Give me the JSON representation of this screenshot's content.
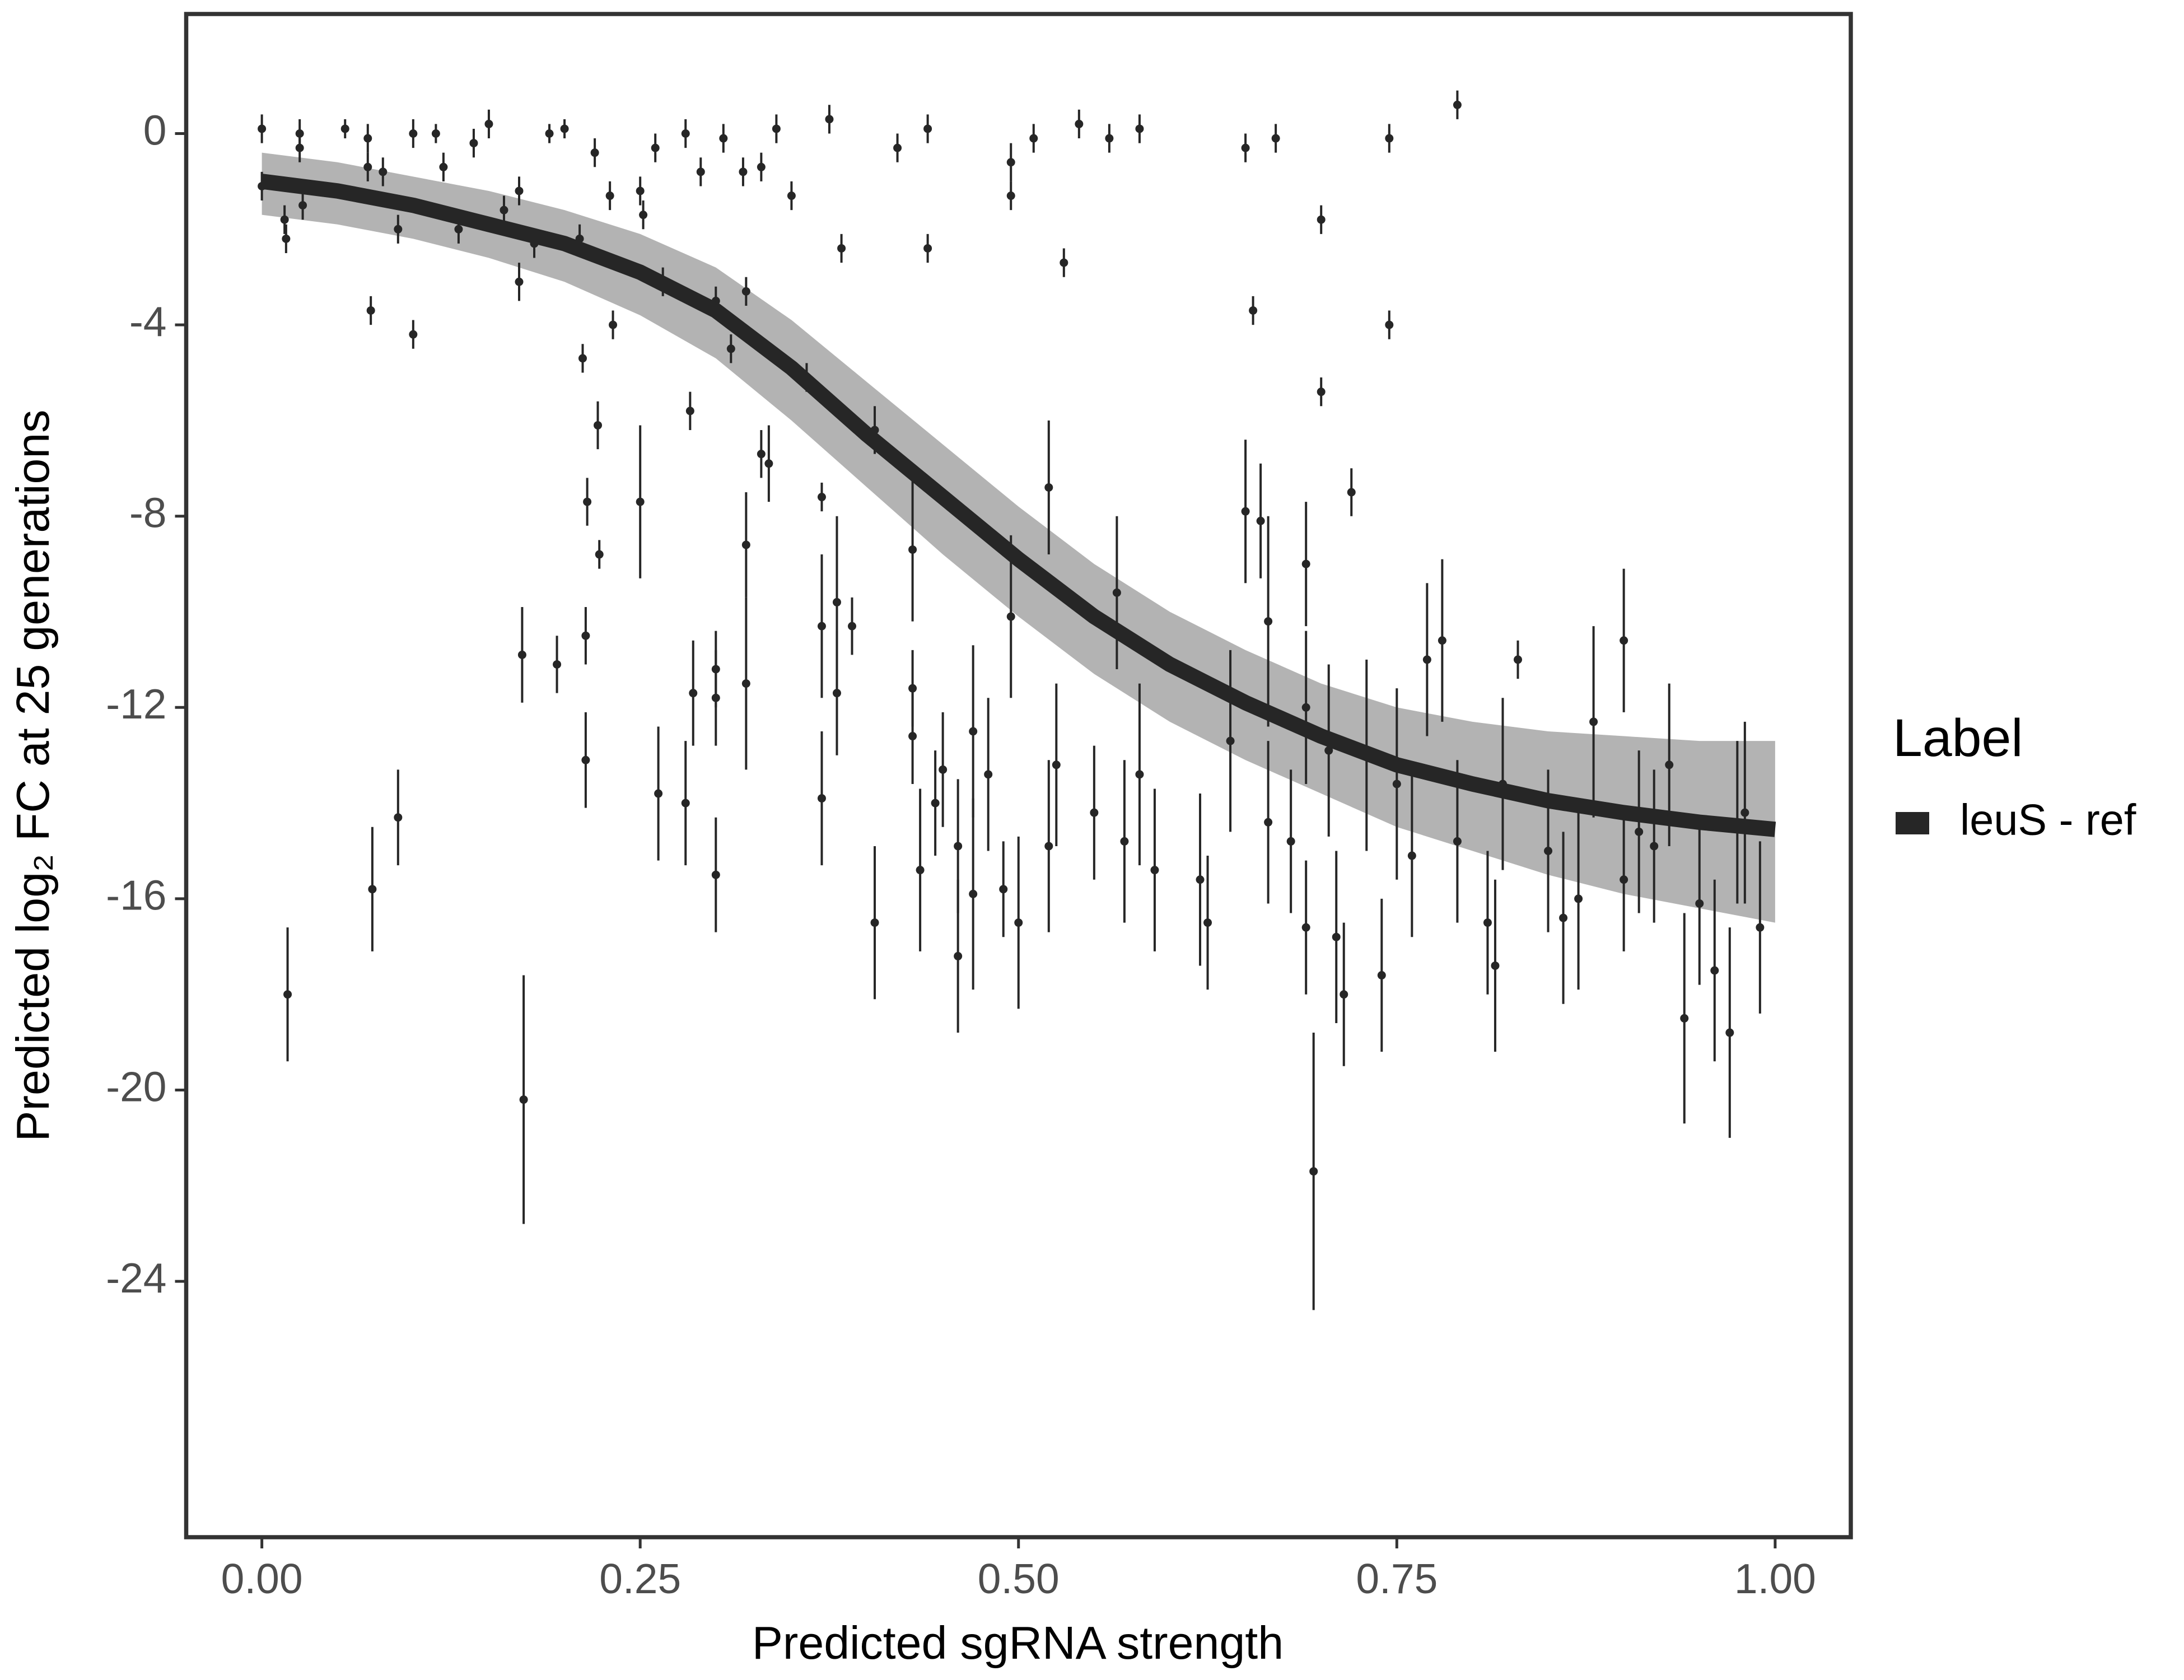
{
  "chart_data": {
    "type": "scatter",
    "x_label": "Predicted sgRNA strength",
    "y_label": "Predicted  log₂ FC at 25 generations",
    "legend_title": "Label",
    "legend_position": "right",
    "xlim": [
      -0.05,
      1.05
    ],
    "ylim": [
      -29.35,
      2.5
    ],
    "xticks": [
      {
        "value": 0,
        "label": "0.00"
      },
      {
        "value": 0.25,
        "label": "0.25"
      },
      {
        "value": 0.5,
        "label": "0.50"
      },
      {
        "value": 0.75,
        "label": "0.75"
      },
      {
        "value": 1,
        "label": "1.00"
      }
    ],
    "yticks": [
      0,
      -4,
      -8,
      -12,
      -16,
      -20,
      -24
    ],
    "grid": false,
    "points": {
      "color": "#262626",
      "x": [
        0.0,
        0.0,
        0.015,
        0.016,
        0.017,
        0.025,
        0.025,
        0.027,
        0.055,
        0.07,
        0.07,
        0.072,
        0.073,
        0.08,
        0.09,
        0.09,
        0.1,
        0.1,
        0.115,
        0.12,
        0.13,
        0.14,
        0.15,
        0.16,
        0.17,
        0.17,
        0.172,
        0.173,
        0.18,
        0.19,
        0.195,
        0.2,
        0.21,
        0.212,
        0.214,
        0.214,
        0.215,
        0.22,
        0.222,
        0.223,
        0.23,
        0.232,
        0.25,
        0.252,
        0.25,
        0.26,
        0.262,
        0.265,
        0.28,
        0.28,
        0.283,
        0.285,
        0.29,
        0.3,
        0.3,
        0.3,
        0.3,
        0.305,
        0.31,
        0.318,
        0.32,
        0.32,
        0.32,
        0.33,
        0.33,
        0.335,
        0.34,
        0.35,
        0.36,
        0.37,
        0.37,
        0.37,
        0.375,
        0.38,
        0.38,
        0.383,
        0.39,
        0.405,
        0.405,
        0.42,
        0.43,
        0.43,
        0.43,
        0.435,
        0.44,
        0.44,
        0.445,
        0.45,
        0.46,
        0.46,
        0.47,
        0.47,
        0.48,
        0.49,
        0.495,
        0.495,
        0.495,
        0.5,
        0.51,
        0.52,
        0.52,
        0.525,
        0.53,
        0.54,
        0.55,
        0.56,
        0.565,
        0.57,
        0.58,
        0.58,
        0.59,
        0.62,
        0.625,
        0.64,
        0.65,
        0.65,
        0.655,
        0.66,
        0.665,
        0.665,
        0.67,
        0.68,
        0.69,
        0.69,
        0.69,
        0.695,
        0.7,
        0.7,
        0.705,
        0.71,
        0.715,
        0.72,
        0.73,
        0.74,
        0.745,
        0.745,
        0.75,
        0.76,
        0.77,
        0.78,
        0.79,
        0.79,
        0.81,
        0.815,
        0.82,
        0.83,
        0.85,
        0.86,
        0.87,
        0.88,
        0.9,
        0.9,
        0.91,
        0.92,
        0.93,
        0.94,
        0.95,
        0.96,
        0.97,
        0.975,
        0.98,
        0.99
      ],
      "values": [
        0.1,
        -1.1,
        -1.8,
        -2.2,
        -18.0,
        0.0,
        -0.3,
        -1.5,
        0.1,
        -0.1,
        -0.7,
        -3.7,
        -15.8,
        -0.8,
        -2.0,
        -14.3,
        -4.2,
        0.0,
        0.0,
        -0.7,
        -2.0,
        -0.2,
        0.2,
        -1.6,
        -3.1,
        -1.2,
        -10.9,
        -20.2,
        -2.3,
        0.0,
        -11.1,
        0.1,
        -2.2,
        -4.7,
        -10.5,
        -13.1,
        -7.7,
        -0.4,
        -6.1,
        -8.8,
        -1.3,
        -4.0,
        -1.2,
        -1.7,
        -7.7,
        -0.3,
        -13.8,
        -3.1,
        0.0,
        -14.0,
        -5.8,
        -11.7,
        -0.8,
        -3.5,
        -11.8,
        -11.2,
        -15.5,
        -0.1,
        -4.5,
        -0.8,
        -8.6,
        -11.5,
        -3.3,
        -0.7,
        -6.7,
        -6.9,
        0.1,
        -1.3,
        -5.1,
        -7.6,
        -10.3,
        -13.9,
        0.3,
        -9.8,
        -11.7,
        -2.4,
        -10.3,
        -6.2,
        -16.5,
        -0.3,
        -11.6,
        -12.6,
        -8.7,
        -15.4,
        -2.4,
        0.1,
        -14.0,
        -13.3,
        -14.9,
        -17.2,
        -12.5,
        -15.9,
        -13.4,
        -15.8,
        -10.1,
        -0.6,
        -1.3,
        -16.5,
        -0.1,
        -14.9,
        -7.4,
        -13.2,
        -2.7,
        0.2,
        -14.2,
        -0.1,
        -9.6,
        -14.8,
        0.1,
        -13.4,
        -15.4,
        -15.6,
        -16.5,
        -12.7,
        -0.3,
        -7.9,
        -3.7,
        -8.1,
        -10.2,
        -14.4,
        -0.1,
        -14.8,
        -12.0,
        -9.0,
        -16.6,
        -21.7,
        -1.8,
        -5.4,
        -12.9,
        -16.8,
        -18.0,
        -7.5,
        -13.0,
        -17.6,
        -0.1,
        -4.0,
        -13.6,
        -15.1,
        -11.0,
        -10.6,
        0.6,
        -14.8,
        -16.5,
        -17.4,
        -13.6,
        -11.0,
        -15.0,
        -16.4,
        -16.0,
        -12.3,
        -15.6,
        -10.6,
        -14.6,
        -14.9,
        -13.2,
        -18.5,
        -16.1,
        -17.5,
        -18.8,
        -14.4,
        -14.2,
        -16.6
      ],
      "errors": [
        0.3,
        0.3,
        0.3,
        0.3,
        1.4,
        0.3,
        0.3,
        0.3,
        0.2,
        0.3,
        0.3,
        0.3,
        1.3,
        0.3,
        0.3,
        1.0,
        0.3,
        0.3,
        0.2,
        0.3,
        0.3,
        0.3,
        0.3,
        0.3,
        0.4,
        0.3,
        1.0,
        2.6,
        0.3,
        0.2,
        0.6,
        0.2,
        0.3,
        0.3,
        0.6,
        1.0,
        0.5,
        0.3,
        0.5,
        0.3,
        0.3,
        0.3,
        0.3,
        0.3,
        1.6,
        0.3,
        1.4,
        0.3,
        0.3,
        1.3,
        0.4,
        1.1,
        0.3,
        0.3,
        1.0,
        0.8,
        1.2,
        0.3,
        0.3,
        0.3,
        1.1,
        1.8,
        0.3,
        0.3,
        0.5,
        0.8,
        0.3,
        0.3,
        0.3,
        0.3,
        1.5,
        1.4,
        0.3,
        1.8,
        1.3,
        0.3,
        0.6,
        0.5,
        1.6,
        0.3,
        0.8,
        1.0,
        1.5,
        1.7,
        0.3,
        0.3,
        1.1,
        1.2,
        1.4,
        1.6,
        1.8,
        2.0,
        1.6,
        1.0,
        1.7,
        0.4,
        0.3,
        1.8,
        0.3,
        1.8,
        1.4,
        1.7,
        0.3,
        0.3,
        1.4,
        0.3,
        1.6,
        1.7,
        0.3,
        1.9,
        1.7,
        1.8,
        1.4,
        1.9,
        0.3,
        1.5,
        0.3,
        1.2,
        2.2,
        1.7,
        0.3,
        1.5,
        1.6,
        1.3,
        1.4,
        2.9,
        0.3,
        0.3,
        1.8,
        1.8,
        1.5,
        0.5,
        2.0,
        1.6,
        0.3,
        0.3,
        2.0,
        1.7,
        1.6,
        1.7,
        0.3,
        1.7,
        1.5,
        1.8,
        1.8,
        0.4,
        1.7,
        1.8,
        1.9,
        2.0,
        1.5,
        1.5,
        1.7,
        1.6,
        1.7,
        2.2,
        1.7,
        1.9,
        2.2,
        1.7,
        1.9,
        1.8
      ]
    },
    "series": [
      {
        "name": "leuS - ref",
        "color": "#262626",
        "band_color": "#a6a6a6",
        "x": [
          0,
          0.05,
          0.1,
          0.15,
          0.2,
          0.25,
          0.3,
          0.35,
          0.4,
          0.45,
          0.5,
          0.55,
          0.6,
          0.65,
          0.7,
          0.75,
          0.8,
          0.85,
          0.9,
          0.95,
          1.0
        ],
        "values": [
          -1.0,
          -1.2,
          -1.5,
          -1.9,
          -2.3,
          -2.9,
          -3.7,
          -4.9,
          -6.3,
          -7.6,
          -8.9,
          -10.1,
          -11.1,
          -11.9,
          -12.6,
          -13.2,
          -13.6,
          -13.95,
          -14.2,
          -14.4,
          -14.55
        ],
        "band_upper": [
          -0.4,
          -0.6,
          -0.9,
          -1.2,
          -1.6,
          -2.1,
          -2.8,
          -3.9,
          -5.2,
          -6.5,
          -7.8,
          -9.0,
          -10.0,
          -10.8,
          -11.5,
          -12.0,
          -12.3,
          -12.5,
          -12.6,
          -12.7,
          -12.7
        ],
        "band_lower": [
          -1.7,
          -1.9,
          -2.2,
          -2.6,
          -3.1,
          -3.8,
          -4.7,
          -6.0,
          -7.4,
          -8.8,
          -10.1,
          -11.3,
          -12.3,
          -13.1,
          -13.8,
          -14.5,
          -15.0,
          -15.5,
          -15.9,
          -16.2,
          -16.5
        ]
      }
    ]
  }
}
